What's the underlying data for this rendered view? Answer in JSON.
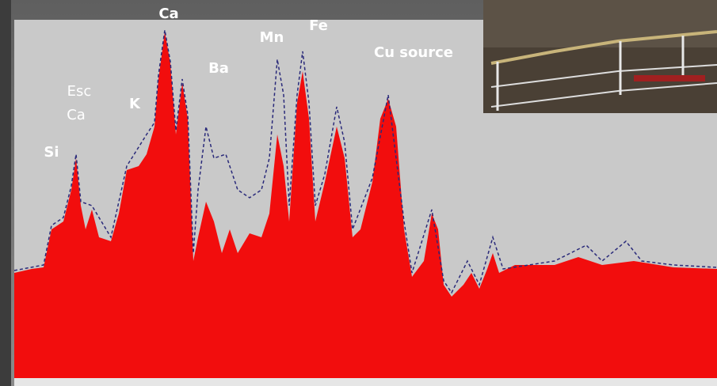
{
  "annotations": {
    "peaks": [
      "Si",
      "Esc",
      "Ca",
      "K",
      "Ca",
      "Ba",
      "Mn",
      "Fe",
      "Cu source"
    ]
  }
}
